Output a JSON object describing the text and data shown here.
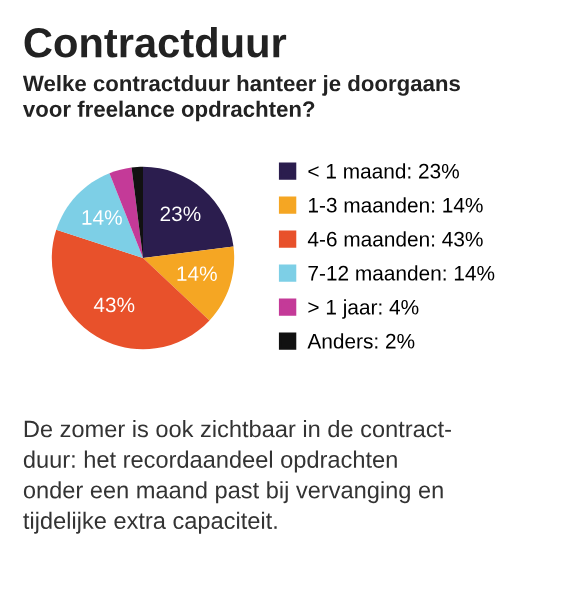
{
  "chart_data": {
    "type": "pie",
    "title": "Contractduur",
    "subtitle": "Welke contractduur hanteer je doorgaans\nvoor freelance opdrachten?",
    "categories": [
      "< 1 maand: 23%",
      "1-3 maanden: 14%",
      "4-6 maanden: 43%",
      "7-12 maanden: 14%",
      "> 1 jaar: 4%",
      "Anders: 2%"
    ],
    "values": [
      23,
      14,
      43,
      14,
      4,
      2
    ],
    "value_labels": [
      "23%",
      "14%",
      "43%",
      "14%",
      null,
      null
    ],
    "colors": [
      "#2b1d4e",
      "#f5a623",
      "#e8512b",
      "#7dcfe6",
      "#c43a98",
      "#111111"
    ],
    "legend": "right",
    "annotations": [
      "De zomer is ook zichtbaar in de contract-\nduur: het recordaandeel opdrachten\nonder een maand past bij vervanging en\ntijdelijke extra capaciteit."
    ]
  }
}
